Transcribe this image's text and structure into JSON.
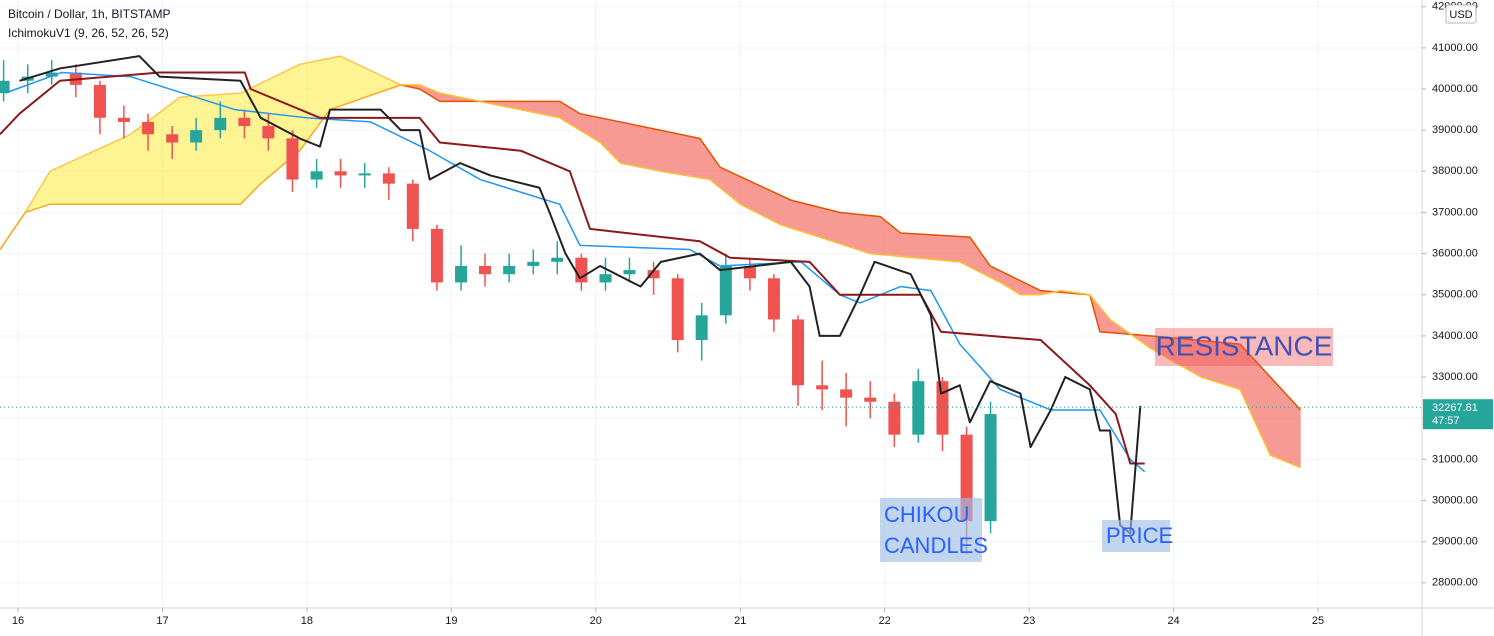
{
  "chart_data": {
    "type": "candlestick",
    "title": "Bitcoin / Dollar, 1h, BITSTAMP",
    "subtitle": "IchimokuV1 (9, 26, 52, 26, 52)",
    "currency": "USD",
    "last_price": 32267.81,
    "countdown": "47:57",
    "up_color": "#26a69a",
    "down_color": "#ef5350",
    "xlim": [
      15.875,
      25.72
    ],
    "xticks": [
      16,
      17,
      18,
      19,
      20,
      21,
      22,
      23,
      24,
      25
    ],
    "ylim": [
      27388,
      42163
    ],
    "yticks": [
      {
        "value": 28000,
        "label": "28000.00"
      },
      {
        "value": 29000,
        "label": "29000.00"
      },
      {
        "value": 30000,
        "label": "30000.00"
      },
      {
        "value": 31000,
        "label": "31000.00"
      },
      {
        "value": 32000,
        "label": "32000.00"
      },
      {
        "value": 33000,
        "label": "33000.00"
      },
      {
        "value": 34000,
        "label": "34000.00"
      },
      {
        "value": 35000,
        "label": "35000.00"
      },
      {
        "value": 36000,
        "label": "36000.00"
      },
      {
        "value": 37000,
        "label": "37000.00"
      },
      {
        "value": 38000,
        "label": "38000.00"
      },
      {
        "value": 39000,
        "label": "39000.00"
      },
      {
        "value": 40000,
        "label": "40000.00"
      },
      {
        "value": 41000,
        "label": "41000.00"
      },
      {
        "value": 42000,
        "label": "42000.00"
      }
    ],
    "x": [
      15.9,
      16.067,
      16.233,
      16.4,
      16.567,
      16.733,
      16.9,
      17.067,
      17.233,
      17.4,
      17.567,
      17.733,
      17.9,
      18.067,
      18.233,
      18.4,
      18.567,
      18.733,
      18.9,
      19.067,
      19.233,
      19.4,
      19.567,
      19.733,
      19.9,
      20.067,
      20.233,
      20.4,
      20.567,
      20.733,
      20.9,
      21.067,
      21.233,
      21.4,
      21.567,
      21.733,
      21.9,
      22.067,
      22.233,
      22.4,
      22.567,
      22.733
    ],
    "open": [
      39900,
      40200,
      40300,
      40400,
      40100,
      39300,
      39200,
      38900,
      38700,
      39000,
      39300,
      39100,
      38800,
      37800,
      38000,
      37900,
      37950,
      37700,
      36600,
      35300,
      35700,
      35500,
      35700,
      35800,
      35900,
      35300,
      35500,
      35600,
      35400,
      33900,
      34500,
      35700,
      35400,
      34400,
      32800,
      32700,
      32500,
      32400,
      31600,
      32900,
      31600,
      29500
    ],
    "high": [
      40700,
      40600,
      40700,
      40600,
      40200,
      39600,
      39400,
      39100,
      39300,
      39700,
      39500,
      39400,
      39000,
      38300,
      38300,
      38200,
      38100,
      37800,
      36700,
      36200,
      36000,
      36000,
      36100,
      36300,
      36000,
      35900,
      35900,
      35800,
      35500,
      34800,
      36000,
      35900,
      35500,
      34500,
      33400,
      33100,
      32900,
      32600,
      33200,
      33000,
      31800,
      32400
    ],
    "low": [
      39700,
      39900,
      40100,
      39800,
      38900,
      38800,
      38500,
      38300,
      38500,
      38800,
      38800,
      38500,
      37500,
      37600,
      37600,
      37600,
      37300,
      36300,
      35100,
      35100,
      35200,
      35300,
      35500,
      35500,
      35100,
      35100,
      35300,
      35000,
      33600,
      33400,
      34300,
      35100,
      34100,
      32300,
      32200,
      31800,
      32000,
      31300,
      31400,
      31200,
      28700,
      29200
    ],
    "close": [
      40200,
      40300,
      40400,
      40100,
      39300,
      39200,
      38900,
      38700,
      39000,
      39300,
      39100,
      38800,
      37800,
      38000,
      37900,
      37950,
      37700,
      36600,
      35300,
      35700,
      35500,
      35700,
      35800,
      35900,
      35300,
      35500,
      35600,
      35400,
      33900,
      34500,
      35700,
      35400,
      34400,
      32800,
      32700,
      32500,
      32400,
      31600,
      32900,
      31600,
      29500,
      32100
    ],
    "clouds": [
      {
        "fill": "rgba(255,235,59,0.55)",
        "upper": {
          "color": "#f9c74f",
          "x": [
            15.875,
            16.05,
            16.22,
            16.78,
            17.12,
            17.54,
            17.95,
            18.23,
            18.65
          ],
          "values": [
            36100,
            37000,
            38000,
            38900,
            39800,
            39900,
            40600,
            40800,
            40100
          ]
        },
        "lower": {
          "color": "#f9a825",
          "x": [
            15.875,
            16.05,
            16.22,
            17.54,
            17.68,
            17.95,
            18.16,
            18.65
          ],
          "values": [
            36100,
            37000,
            37200,
            37200,
            37700,
            38500,
            39500,
            40100
          ]
        }
      },
      {
        "fill": "rgba(244,100,90,0.65)",
        "upper": {
          "color": "#e65100",
          "x": [
            18.65,
            18.78,
            18.92,
            19.75,
            19.89,
            20.17,
            20.72,
            20.86,
            21.35,
            21.69,
            21.97,
            22.11,
            22.59,
            22.73,
            23.08,
            23.42,
            23.49,
            23.84,
            24.46,
            24.67,
            24.88
          ],
          "values": [
            40100,
            40000,
            39700,
            39700,
            39400,
            39200,
            38800,
            38100,
            37300,
            37000,
            36900,
            36500,
            36400,
            35700,
            35100,
            35000,
            34100,
            34000,
            33800,
            33000,
            32200
          ]
        },
        "lower": {
          "color": "#fbc02d",
          "x": [
            18.65,
            18.78,
            18.92,
            19.75,
            20.03,
            20.17,
            20.45,
            20.79,
            21.0,
            21.28,
            21.55,
            21.9,
            22.52,
            22.8,
            22.94,
            23.08,
            23.22,
            23.42,
            23.56,
            23.84,
            24.19,
            24.46,
            24.67,
            24.88
          ],
          "values": [
            40100,
            40100,
            39900,
            39300,
            38700,
            38200,
            38000,
            37800,
            37200,
            36700,
            36400,
            36000,
            35800,
            35300,
            35000,
            35000,
            35100,
            35000,
            34400,
            33700,
            33000,
            32700,
            31100,
            30800
          ]
        }
      }
    ],
    "lines": [
      {
        "color": "#2196f3",
        "width": 1.5,
        "x": [
          15.91,
          16.3,
          16.78,
          17.5,
          18.0,
          18.44,
          18.85,
          19.2,
          19.75,
          19.89,
          20.65,
          20.86,
          21.42,
          21.69,
          21.83,
          21.97,
          22.11,
          22.32,
          22.52,
          22.8,
          23.15,
          23.49,
          23.7,
          23.8
        ],
        "values": [
          39900,
          40400,
          40300,
          39500,
          39300,
          39200,
          38500,
          37800,
          37200,
          36200,
          36100,
          35700,
          35800,
          35000,
          34800,
          35000,
          35200,
          35100,
          33800,
          32700,
          32200,
          32200,
          31000,
          30700
        ]
      },
      {
        "color": "#8b1a1a",
        "width": 2,
        "x": [
          15.875,
          16.01,
          16.29,
          16.98,
          17.57,
          17.61,
          18.09,
          18.78,
          18.92,
          19.48,
          19.82,
          19.96,
          20.72,
          20.93,
          21.48,
          21.69,
          22.25,
          22.39,
          23.08,
          23.42,
          23.6,
          23.7,
          23.8
        ],
        "values": [
          38900,
          39400,
          40200,
          40400,
          40400,
          40000,
          39300,
          39300,
          38700,
          38500,
          38000,
          36600,
          36300,
          35900,
          35800,
          35000,
          35000,
          34100,
          33900,
          32800,
          32100,
          30900,
          30900
        ]
      },
      {
        "color": "#222222",
        "width": 2,
        "x": [
          16.01,
          16.29,
          16.84,
          16.98,
          17.54,
          17.68,
          17.95,
          18.09,
          18.16,
          18.51,
          18.65,
          18.78,
          18.85,
          19.06,
          19.27,
          19.61,
          19.68,
          19.79,
          19.89,
          20.03,
          20.31,
          20.45,
          20.72,
          20.86,
          21.35,
          21.48,
          21.55,
          21.69,
          21.83,
          21.93,
          22.18,
          22.32,
          22.39,
          22.52,
          22.59,
          22.73,
          22.94,
          23.01,
          23.15,
          23.25,
          23.42,
          23.49,
          23.56,
          23.63,
          23.7,
          23.77
        ],
        "values": [
          40200,
          40500,
          40800,
          40300,
          40200,
          39300,
          38800,
          38600,
          39500,
          39500,
          39000,
          39000,
          37800,
          38200,
          37900,
          37600,
          37000,
          36000,
          35400,
          35700,
          35200,
          35800,
          36000,
          35600,
          35800,
          35200,
          34000,
          34000,
          35000,
          35800,
          35500,
          34500,
          32600,
          32800,
          31900,
          32900,
          32600,
          31300,
          32200,
          33000,
          32700,
          31700,
          31700,
          29400,
          29200,
          32300
        ]
      }
    ],
    "annotations": {
      "resistance": "RESISTANCE",
      "chikou": "CHIKOU",
      "candles": "CANDLES",
      "price": "PRICE"
    }
  }
}
